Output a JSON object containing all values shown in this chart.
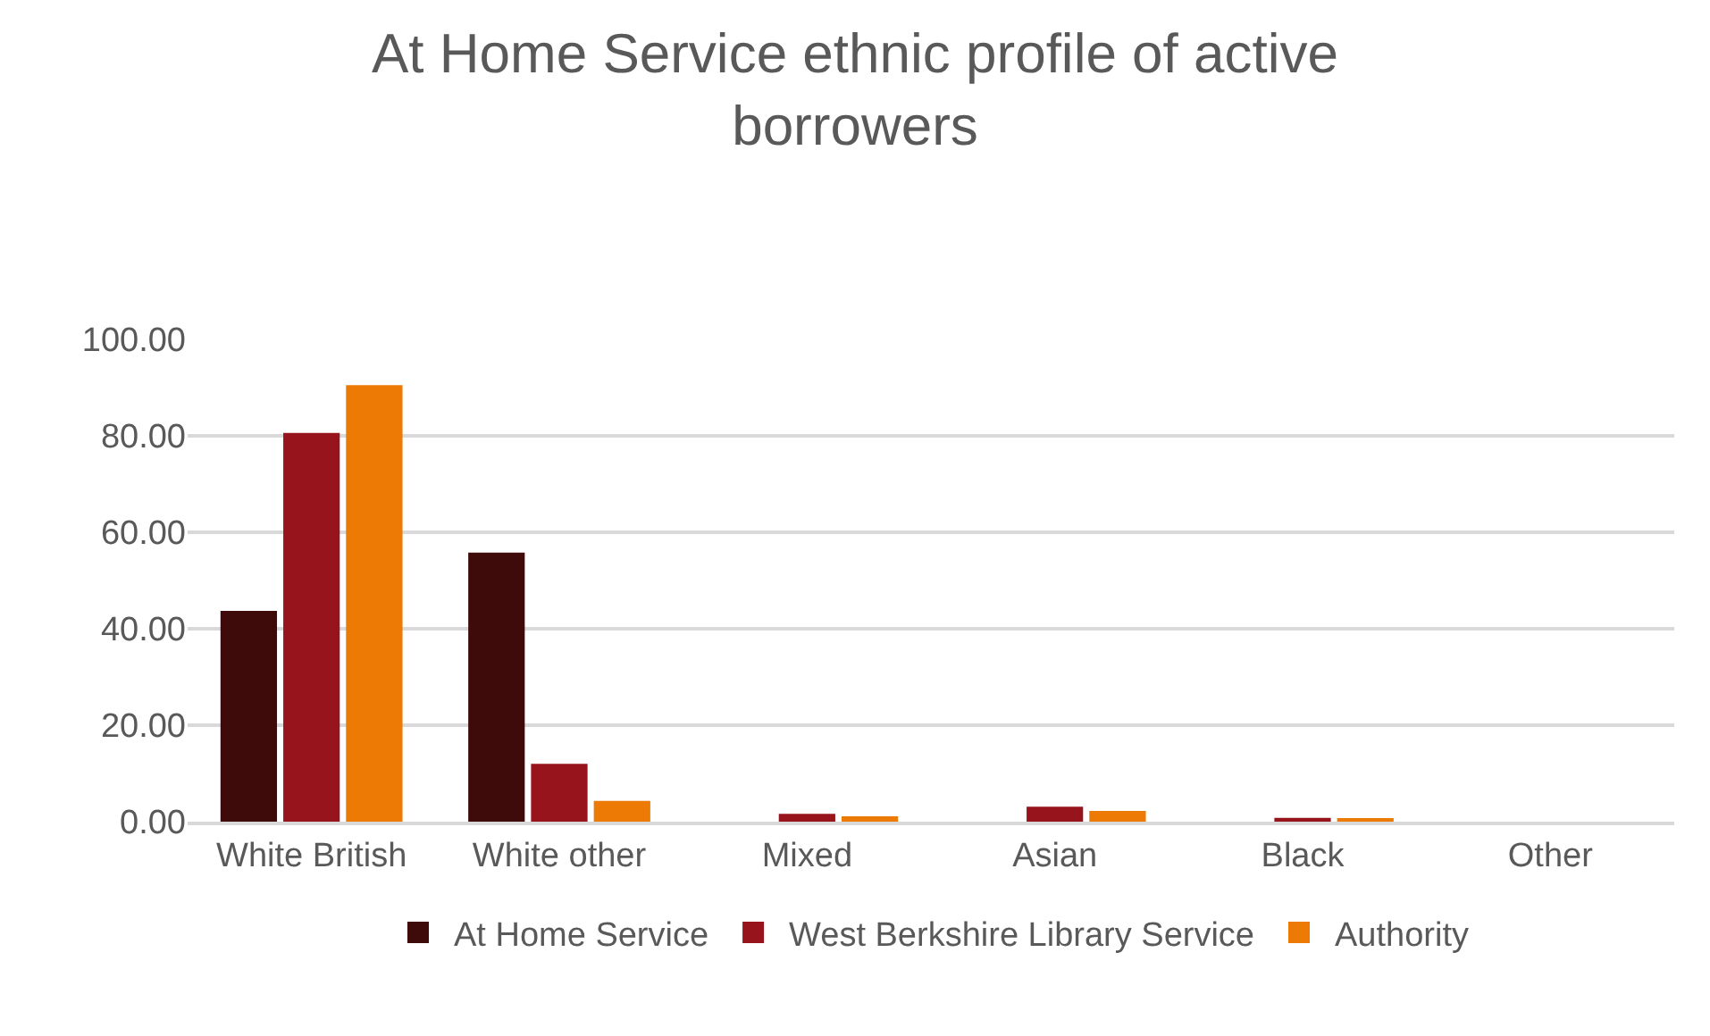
{
  "chart_data": {
    "type": "bar",
    "title": "At Home Service ethnic profile of active borrowers",
    "categories": [
      "White British",
      "White other",
      "Mixed",
      "Asian",
      "Black",
      "Other"
    ],
    "series": [
      {
        "name": "At Home Service",
        "color": "#3f0a0a",
        "values": [
          43.7,
          55.8,
          0,
          0,
          0,
          0
        ]
      },
      {
        "name": "West Berkshire Library Service",
        "color": "#98141c",
        "values": [
          80.6,
          12.0,
          1.6,
          3.1,
          0.8,
          0
        ]
      },
      {
        "name": "Authority",
        "color": "#ec7a04",
        "values": [
          90.5,
          4.3,
          1.1,
          2.2,
          0.7,
          0
        ]
      }
    ],
    "ylim": [
      0,
      100
    ],
    "yticks": [
      {
        "value": 0,
        "label": "0.00"
      },
      {
        "value": 20,
        "label": "20.00"
      },
      {
        "value": 40,
        "label": "40.00"
      },
      {
        "value": 60,
        "label": "60.00"
      },
      {
        "value": 80,
        "label": "80.00"
      },
      {
        "value": 100,
        "label": "100.00"
      }
    ],
    "grid": "y",
    "legend": "bottom"
  }
}
